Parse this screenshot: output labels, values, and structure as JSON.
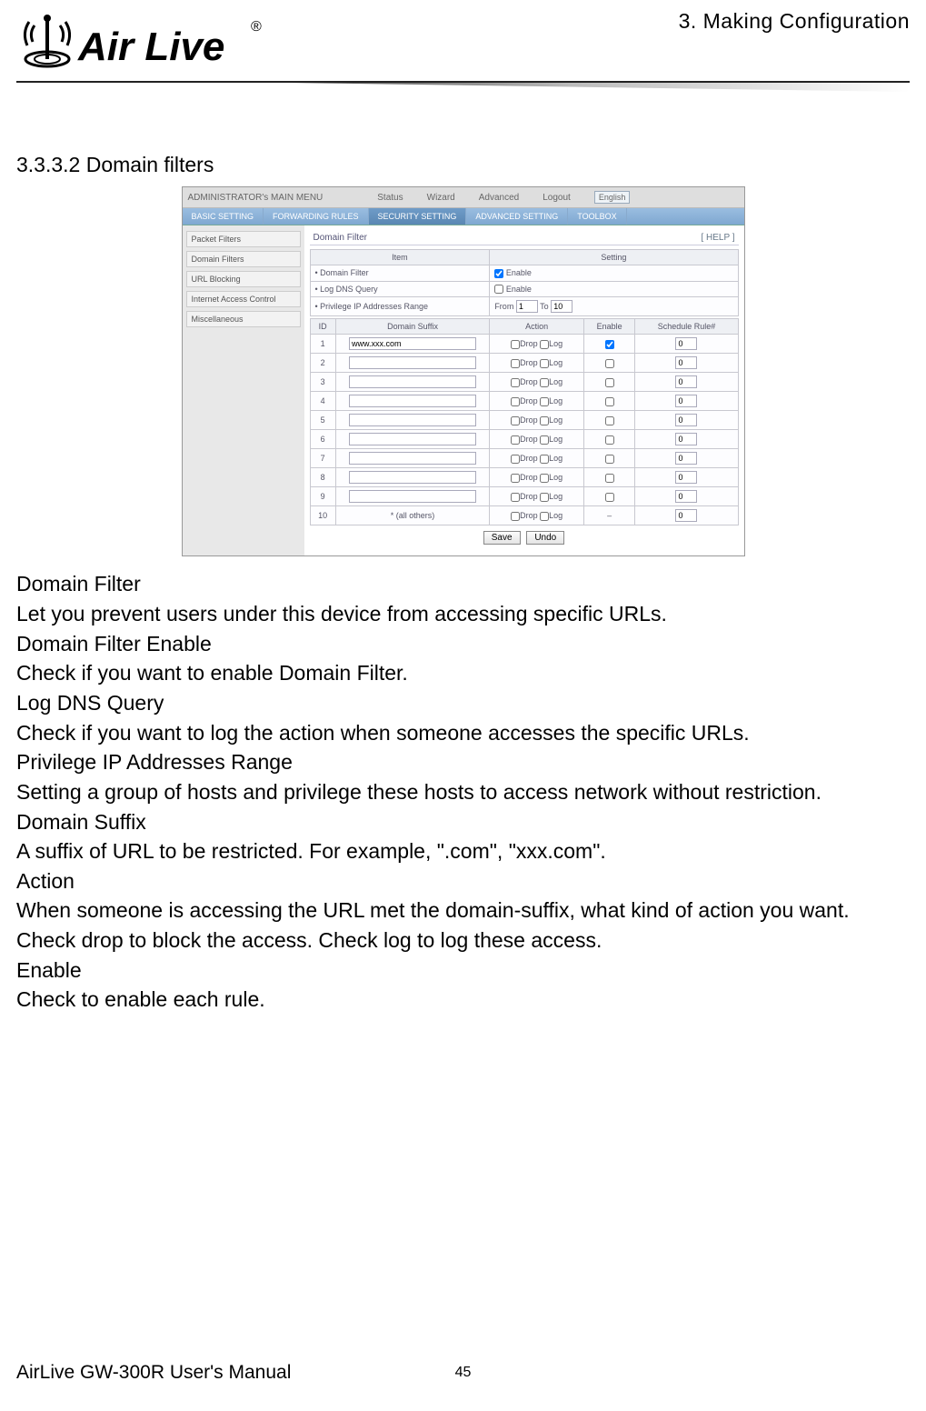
{
  "header": {
    "chapter": "3. Making Configuration"
  },
  "brand": {
    "name": "Air Live",
    "reg": "®"
  },
  "section": {
    "heading": "3.3.3.2 Domain filters"
  },
  "screenshot": {
    "topbar": {
      "title": "ADMINISTRATOR's MAIN MENU",
      "links": [
        "Status",
        "Wizard",
        "Advanced",
        "Logout"
      ],
      "lang": "English"
    },
    "tabs": [
      "BASIC SETTING",
      "FORWARDING RULES",
      "SECURITY SETTING",
      "ADVANCED SETTING",
      "TOOLBOX"
    ],
    "active_tab_index": 2,
    "sidebar": [
      "Packet Filters",
      "Domain Filters",
      "URL Blocking",
      "Internet Access Control",
      "Miscellaneous"
    ],
    "panel": {
      "title": "Domain Filter",
      "help": "[ HELP ]",
      "settings_header": {
        "item": "Item",
        "setting": "Setting"
      },
      "settings": [
        {
          "label": "Domain Filter",
          "type": "checkbox",
          "checked": true,
          "text": "Enable"
        },
        {
          "label": "Log DNS Query",
          "type": "checkbox",
          "checked": false,
          "text": "Enable"
        },
        {
          "label": "Privilege IP Addresses Range",
          "type": "range",
          "from_label": "From",
          "from": "1",
          "to_label": "To",
          "to": "10"
        }
      ],
      "table": {
        "headers": [
          "ID",
          "Domain Suffix",
          "Action",
          "Enable",
          "Schedule Rule#"
        ],
        "action_drop": "Drop",
        "action_log": "Log",
        "rows": [
          {
            "id": "1",
            "suffix": "www.xxx.com",
            "drop": false,
            "log": false,
            "enable": true,
            "rule": "0"
          },
          {
            "id": "2",
            "suffix": "",
            "drop": false,
            "log": false,
            "enable": false,
            "rule": "0"
          },
          {
            "id": "3",
            "suffix": "",
            "drop": false,
            "log": false,
            "enable": false,
            "rule": "0"
          },
          {
            "id": "4",
            "suffix": "",
            "drop": false,
            "log": false,
            "enable": false,
            "rule": "0"
          },
          {
            "id": "5",
            "suffix": "",
            "drop": false,
            "log": false,
            "enable": false,
            "rule": "0"
          },
          {
            "id": "6",
            "suffix": "",
            "drop": false,
            "log": false,
            "enable": false,
            "rule": "0"
          },
          {
            "id": "7",
            "suffix": "",
            "drop": false,
            "log": false,
            "enable": false,
            "rule": "0"
          },
          {
            "id": "8",
            "suffix": "",
            "drop": false,
            "log": false,
            "enable": false,
            "rule": "0"
          },
          {
            "id": "9",
            "suffix": "",
            "drop": false,
            "log": false,
            "enable": false,
            "rule": "0"
          },
          {
            "id": "10",
            "suffix": "* (all others)",
            "drop": false,
            "log": false,
            "enable": null,
            "rule": "0",
            "fixed": true
          }
        ]
      },
      "buttons": {
        "save": "Save",
        "undo": "Undo"
      }
    }
  },
  "body": {
    "lines": [
      "Domain Filter",
      "Let you prevent users under this device from accessing specific URLs.",
      "Domain Filter Enable",
      "Check if you want to enable Domain Filter.",
      "Log DNS Query",
      "Check if you want to log the action when someone accesses the specific URLs.",
      "Privilege IP Addresses Range",
      "Setting a group of hosts and privilege these hosts to access network without restriction.",
      "Domain Suffix",
      "A suffix of URL to be restricted. For example, \".com\", \"xxx.com\".",
      "Action",
      "When someone is accessing the URL met the domain-suffix, what kind of action you want.",
      "Check drop to block the access. Check log to log these access.",
      "Enable",
      "Check to enable each rule."
    ]
  },
  "footer": {
    "manual": "AirLive GW-300R User's Manual",
    "page": "45"
  },
  "colors": {
    "tab_bg": "#9abde0",
    "tab_active": "#5a87b3",
    "border": "#c8c8d0",
    "text": "#000000"
  }
}
